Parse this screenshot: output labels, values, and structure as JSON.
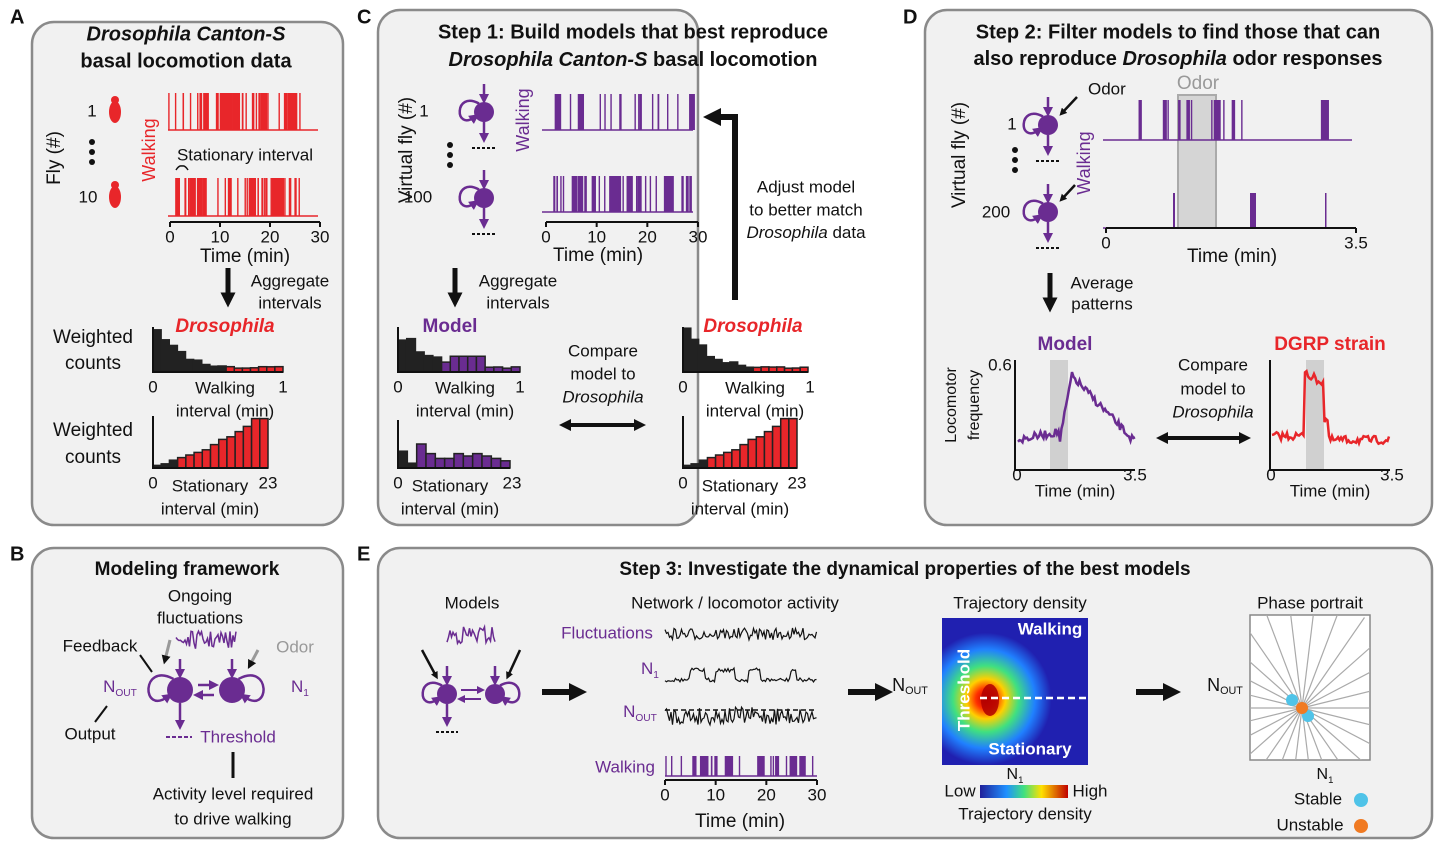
{
  "panel_letters": [
    "A",
    "B",
    "C",
    "D",
    "E"
  ],
  "A": {
    "title": [
      "Drosophila Canton-S",
      "basal locomotion data"
    ],
    "y_axis": "Fly (#)",
    "flies": [
      "1",
      "10"
    ],
    "trace": "Walking",
    "interval": "Stationary interval",
    "time_ticks": [
      0,
      10,
      20,
      30
    ],
    "time_label": "Time (min)",
    "arrow_text": [
      "Aggregate",
      "intervals"
    ],
    "hist_title": "Drosophila",
    "walk_ylabel": [
      "Weighted",
      "counts"
    ],
    "walk_ticks": [
      0,
      1
    ],
    "walk_label": [
      "Walking",
      "interval (min)"
    ],
    "stat_ylabel": [
      "Weighted",
      "counts"
    ],
    "stat_ticks": [
      0,
      23
    ],
    "stat_label": [
      "Stationary",
      "interval (min)"
    ]
  },
  "B": {
    "title": "Modeling framework",
    "fluct": [
      "Ongoing",
      "fluctuations"
    ],
    "feedback": "Feedback",
    "odor": "Odor",
    "n_out": [
      "N",
      "OUT"
    ],
    "n1": [
      "N",
      "1"
    ],
    "output": "Output",
    "threshold": "Threshold",
    "note": [
      "Activity level required",
      "to drive walking"
    ]
  },
  "C": {
    "title1": "Step 1: Build models that best reproduce",
    "title2": [
      "Drosophila Canton-S",
      " basal locomotion"
    ],
    "y_axis": "Virtual fly (#)",
    "flies": [
      "1",
      "100"
    ],
    "trace": "Walking",
    "time_ticks": [
      0,
      10,
      20,
      30
    ],
    "time_label": "Time (min)",
    "adjust1": "Adjust model",
    "adjust2": "to better match",
    "adjust3": [
      "Drosophila",
      " data"
    ],
    "arrow_text": [
      "Aggregate",
      "intervals"
    ],
    "model": "Model",
    "fly_label": "Drosophila",
    "model_hist": {
      "walk_ticks": [
        0,
        1
      ],
      "walk_label": [
        "Walking",
        "interval (min)"
      ],
      "stat_ticks": [
        0,
        23
      ],
      "stat_label": [
        "Stationary",
        "interval (min)"
      ]
    },
    "fly_hist": {
      "walk_ticks": [
        0,
        1
      ],
      "walk_label": [
        "Walking",
        "interval (min)"
      ],
      "stat_ticks": [
        0,
        23
      ],
      "stat_label": [
        "Stationary",
        "interval (min)"
      ]
    },
    "compare": [
      "Compare",
      "model to",
      "Drosophila"
    ]
  },
  "D": {
    "title1": "Step 2: Filter models to find those that can",
    "title2": [
      "also reproduce ",
      "Drosophila",
      " odor responses"
    ],
    "y_axis": "Virtual fly (#)",
    "flies": [
      "1",
      "200"
    ],
    "odor_arrow": "Odor",
    "trace": "Walking",
    "odor_window": "Odor",
    "time_ticks": [
      0,
      3.5
    ],
    "time_label": "Time (min)",
    "arrow_text": [
      "Average",
      "patterns"
    ],
    "model": "Model",
    "y_label": [
      "Locomotor",
      "frequency"
    ],
    "y_tick": 0.6,
    "model_xticks": [
      0,
      3.5
    ],
    "model_xlabel": "Time (min)",
    "compare": [
      "Compare",
      "model to",
      "Drosophila"
    ],
    "strain": "DGRP strain",
    "strain_xticks": [
      0,
      3.5
    ],
    "strain_xlabel": "Time (min)"
  },
  "E": {
    "title": "Step 3: Investigate the dynamical properties of the best models",
    "models": "Models",
    "network": "Network / locomotor activity",
    "fluct": "Fluctuations",
    "n1": [
      "N",
      "1"
    ],
    "n_out": [
      "N",
      "OUT"
    ],
    "walking": "Walking",
    "time_ticks": [
      0,
      10,
      20,
      30
    ],
    "time_label": "Time (min)",
    "density": {
      "title": "Trajectory density",
      "walking": "Walking",
      "stationary": "Stationary",
      "threshold": "Threshold",
      "y": [
        "N",
        "OUT"
      ],
      "x": [
        "N",
        "1"
      ],
      "low": "Low",
      "high": "High",
      "legend": "Trajectory density"
    },
    "phase": {
      "title": "Phase portrait",
      "y": [
        "N",
        "OUT"
      ],
      "x": [
        "N",
        "1"
      ],
      "stable": "Stable",
      "unstable": "Unstable"
    }
  }
}
